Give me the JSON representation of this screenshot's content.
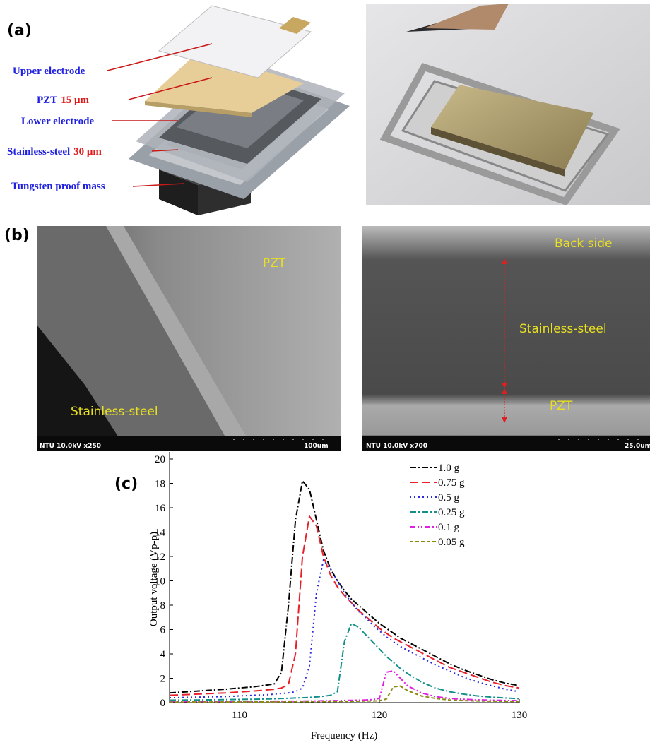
{
  "panel_a": {
    "label": "(a)",
    "layers": [
      {
        "name": "Upper electrode"
      },
      {
        "name": "PZT",
        "thickness": "15 μm"
      },
      {
        "name": "Lower electrode"
      },
      {
        "name": "Stainless-steel",
        "thickness": "30 μm"
      },
      {
        "name": "Tungsten proof mass"
      }
    ]
  },
  "panel_b": {
    "label": "(b)",
    "left": {
      "pzt": "PZT",
      "steel": "Stainless-steel",
      "info": "NTU 10.0kV x250",
      "scale": "100um"
    },
    "right": {
      "back": "Back side",
      "steel": "Stainless-steel",
      "pzt": "PZT",
      "info": "NTU 10.0kV x700",
      "scale": "25.0um"
    }
  },
  "chart_data": {
    "type": "line",
    "panel_label": "(c)",
    "xlabel": "Frequency (Hz)",
    "ylabel": "Output voltage (Vp-p)",
    "xlim": [
      105,
      130
    ],
    "xticks": [
      110,
      120,
      130
    ],
    "ylim": [
      0,
      20
    ],
    "yticks": [
      0,
      2,
      4,
      6,
      8,
      10,
      12,
      14,
      16,
      18,
      20
    ],
    "x": [
      105,
      107,
      109,
      111,
      112,
      112.5,
      113,
      113.5,
      114,
      114.5,
      115,
      115.5,
      116,
      116.5,
      117,
      117.5,
      118,
      118.5,
      119,
      119.5,
      120,
      120.5,
      121,
      121.5,
      122,
      123,
      124,
      125,
      126,
      127,
      128,
      129,
      130
    ],
    "series": [
      {
        "name": "1.0 g",
        "color": "#000000",
        "linestyle": "dashdot",
        "values": [
          0.8,
          0.95,
          1.1,
          1.3,
          1.45,
          1.55,
          2.5,
          8,
          15,
          18.2,
          17.5,
          15,
          12.5,
          11,
          10,
          9.2,
          8.5,
          8,
          7.5,
          7,
          6.5,
          6.1,
          5.7,
          5.3,
          5,
          4.4,
          3.8,
          3.2,
          2.7,
          2.3,
          1.9,
          1.6,
          1.4
        ]
      },
      {
        "name": "0.75 g",
        "color": "#e8202a",
        "linestyle": "dashed",
        "values": [
          0.6,
          0.7,
          0.8,
          0.95,
          1.05,
          1.1,
          1.2,
          1.5,
          4,
          12,
          15.3,
          14.5,
          12,
          10.5,
          9.5,
          8.8,
          8.2,
          7.6,
          7.1,
          6.6,
          6.1,
          5.7,
          5.3,
          5,
          4.7,
          4.1,
          3.5,
          2.9,
          2.5,
          2.1,
          1.7,
          1.4,
          1.2
        ]
      },
      {
        "name": "0.5 g",
        "color": "#2a2ae0",
        "linestyle": "dotted",
        "values": [
          0.4,
          0.45,
          0.5,
          0.6,
          0.65,
          0.7,
          0.75,
          0.8,
          0.9,
          1.2,
          3,
          9,
          11.7,
          11,
          10,
          9,
          8.2,
          7.5,
          7,
          6.4,
          5.9,
          5.4,
          5,
          4.6,
          4.3,
          3.7,
          3.1,
          2.6,
          2.1,
          1.7,
          1.4,
          1.1,
          0.9
        ]
      },
      {
        "name": "0.25 g",
        "color": "#14908a",
        "linestyle": "dashdot",
        "values": [
          0.2,
          0.22,
          0.25,
          0.28,
          0.3,
          0.32,
          0.34,
          0.36,
          0.38,
          0.4,
          0.43,
          0.47,
          0.52,
          0.6,
          0.9,
          5,
          6.5,
          6.2,
          5.6,
          5,
          4.4,
          3.8,
          3.3,
          2.8,
          2.4,
          1.7,
          1.2,
          0.9,
          0.7,
          0.55,
          0.45,
          0.38,
          0.32
        ]
      },
      {
        "name": "0.1 g",
        "color": "#e020e0",
        "linestyle": "dashdotdot",
        "values": [
          0.08,
          0.09,
          0.1,
          0.11,
          0.11,
          0.12,
          0.12,
          0.12,
          0.13,
          0.13,
          0.14,
          0.14,
          0.15,
          0.16,
          0.17,
          0.18,
          0.19,
          0.2,
          0.22,
          0.25,
          0.35,
          2.5,
          2.6,
          2,
          1.4,
          0.8,
          0.5,
          0.35,
          0.28,
          0.23,
          0.2,
          0.18,
          0.16
        ]
      },
      {
        "name": "0.05 g",
        "color": "#8a8a10",
        "linestyle": "shortdash",
        "values": [
          0.04,
          0.05,
          0.05,
          0.06,
          0.06,
          0.06,
          0.07,
          0.07,
          0.07,
          0.08,
          0.08,
          0.09,
          0.09,
          0.1,
          0.1,
          0.11,
          0.11,
          0.12,
          0.13,
          0.14,
          0.15,
          0.3,
          1.3,
          1.35,
          1,
          0.55,
          0.35,
          0.22,
          0.17,
          0.14,
          0.12,
          0.11,
          0.1
        ]
      }
    ]
  }
}
